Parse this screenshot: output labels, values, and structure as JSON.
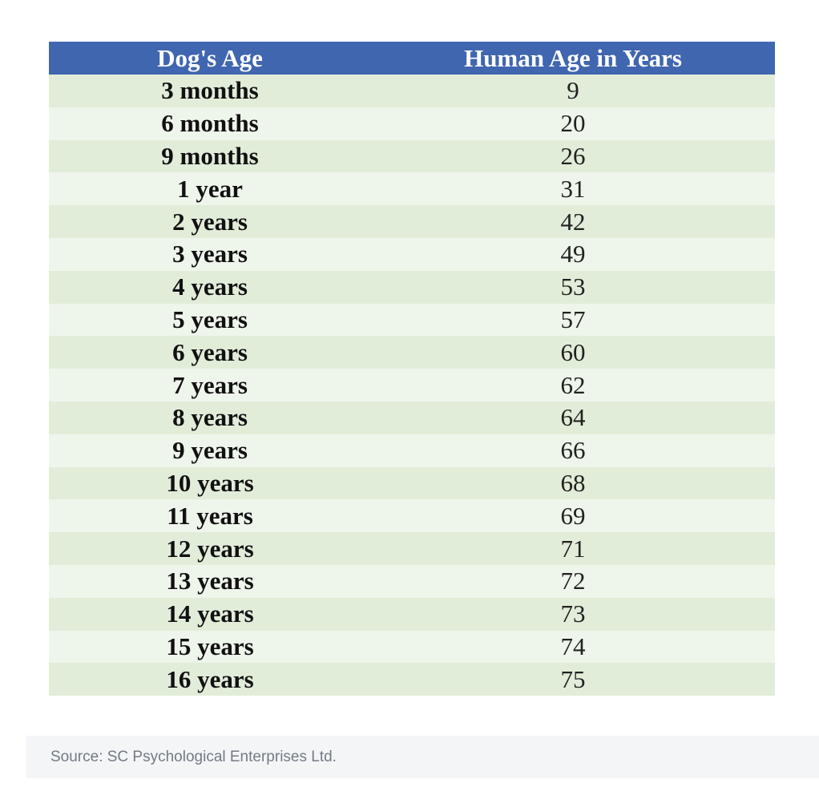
{
  "table": {
    "headers": [
      "Dog's Age",
      "Human Age in Years"
    ],
    "rows": [
      [
        "3 months",
        "9"
      ],
      [
        "6 months",
        "20"
      ],
      [
        "9 months",
        "26"
      ],
      [
        "1 year",
        "31"
      ],
      [
        "2 years",
        "42"
      ],
      [
        "3 years",
        "49"
      ],
      [
        "4 years",
        "53"
      ],
      [
        "5 years",
        "57"
      ],
      [
        "6 years",
        "60"
      ],
      [
        "7 years",
        "62"
      ],
      [
        "8 years",
        "64"
      ],
      [
        "9 years",
        "66"
      ],
      [
        "10 years",
        "68"
      ],
      [
        "11 years",
        "69"
      ],
      [
        "12 years",
        "71"
      ],
      [
        "13 years",
        "72"
      ],
      [
        "14 years",
        "73"
      ],
      [
        "15 years",
        "74"
      ],
      [
        "16 years",
        "75"
      ]
    ]
  },
  "caption": {
    "source": "Source: SC Psychological Enterprises Ltd."
  },
  "colors": {
    "header_bg": "#4066b0",
    "row_odd": "#e1edd9",
    "row_even": "#eef5ea",
    "caption_bg": "#f4f5f7"
  }
}
